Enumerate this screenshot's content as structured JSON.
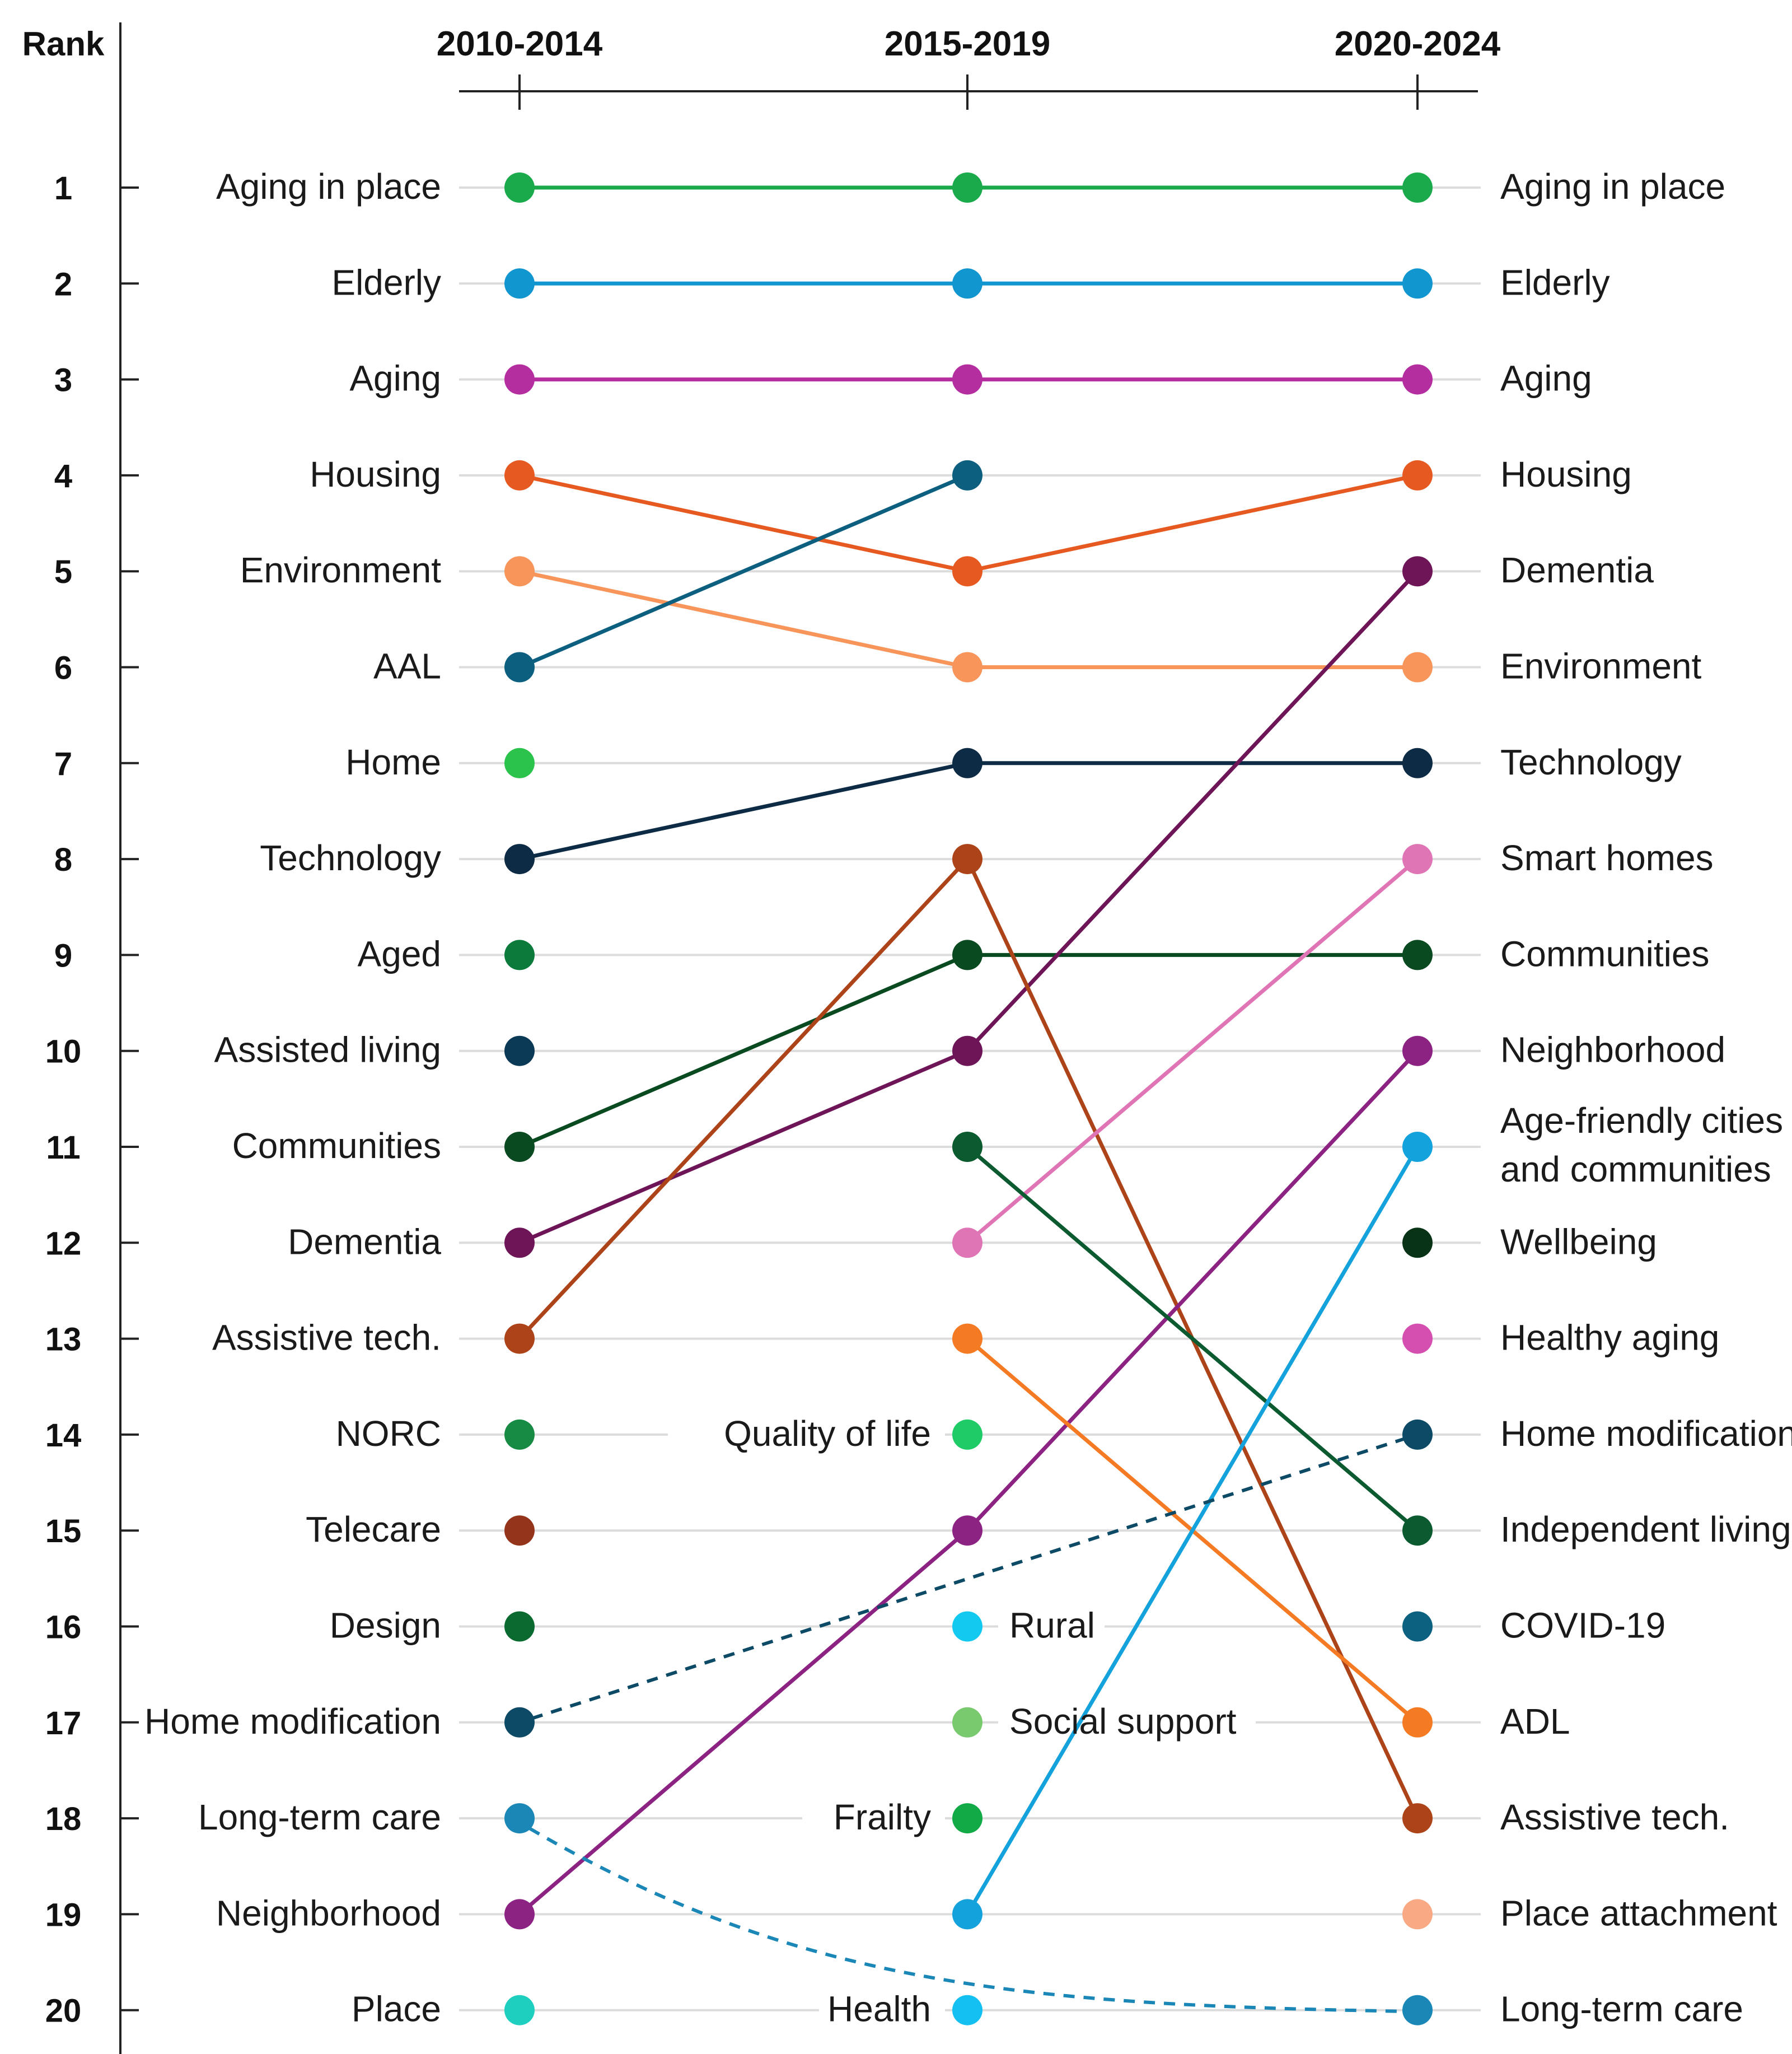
{
  "chart_data": {
    "type": "bump",
    "ylabel": "Rank",
    "periods": [
      "2010-2014",
      "2015-2019",
      "2020-2024"
    ],
    "ranks": [
      1,
      2,
      3,
      4,
      5,
      6,
      7,
      8,
      9,
      10,
      11,
      12,
      13,
      14,
      15,
      16,
      17,
      18,
      19,
      20
    ],
    "grid": true,
    "columns": [
      {
        "period": "2010-2014",
        "labels": [
          "Aging in place",
          "Elderly",
          "Aging",
          "Housing",
          "Environment",
          "AAL",
          "Home",
          "Technology",
          "Aged",
          "Assisted living",
          "Communities",
          "Dementia",
          "Assistive tech.",
          "NORC",
          "Telecare",
          "Design",
          "Home modification",
          "Long-term care",
          "Neighborhood",
          "Place"
        ],
        "colors": [
          "#1aaa4b",
          "#1296cf",
          "#b52ea0",
          "#e65a22",
          "#f7955b",
          "#0c5f7f",
          "#2cc34c",
          "#0d2b45",
          "#0b7a3b",
          "#0b3a57",
          "#0a4a20",
          "#6e1558",
          "#ad4419",
          "#178a43",
          "#93341b",
          "#0b6a30",
          "#0d4a65",
          "#1a87b7",
          "#8c2382",
          "#1ecfbf"
        ]
      },
      {
        "period": "2015-2019",
        "labels": [
          "",
          "",
          "",
          "",
          "",
          "",
          "",
          "",
          "",
          "",
          "",
          "",
          "",
          "Quality of life",
          "",
          "Rural",
          "Social support",
          "Frailty",
          "",
          "Health"
        ],
        "colors": [
          "#1aaa4b",
          "#1296cf",
          "#b52ea0",
          "#0c5f7f",
          "#e65a22",
          "#f7955b",
          "#0d2b45",
          "#ad4419",
          "#0a4a20",
          "#6e1558",
          "#0b5a30",
          "#e075b6",
          "#f57a24",
          "#1ecb66",
          "#8c2382",
          "#14c9f0",
          "#79ca6e",
          "#11aa47",
          "#13a2db",
          "#14c0f2"
        ]
      },
      {
        "period": "2020-2024",
        "labels": [
          "Aging in place",
          "Elderly",
          "Aging",
          "Housing",
          "Dementia",
          "Environment",
          "Technology",
          "Smart homes",
          "Communities",
          "Neighborhood",
          "Age-friendly cities and communities",
          "Wellbeing",
          "Healthy aging",
          "Home modification",
          "Independent living",
          "COVID-19",
          "ADL",
          "Assistive tech.",
          "Place attachment",
          "Long-term care"
        ],
        "colors": [
          "#1aaa4b",
          "#1296cf",
          "#b52ea0",
          "#e65a22",
          "#6e1558",
          "#f7955b",
          "#0d2b45",
          "#e075b6",
          "#0a4a20",
          "#8c2382",
          "#13a2db",
          "#083316",
          "#d44fb0",
          "#0d4a65",
          "#0b5a30",
          "#0c6080",
          "#f57a24",
          "#ad4419",
          "#f9aa84",
          "#1a87b7"
        ]
      }
    ],
    "series": [
      {
        "name": "Aging in place",
        "ranks": [
          1,
          1,
          1
        ],
        "color": "#1aaa4b"
      },
      {
        "name": "Elderly",
        "ranks": [
          2,
          2,
          2
        ],
        "color": "#1296cf"
      },
      {
        "name": "Aging",
        "ranks": [
          3,
          3,
          3
        ],
        "color": "#b52ea0"
      },
      {
        "name": "Housing",
        "ranks": [
          4,
          5,
          4
        ],
        "color": "#e65a22"
      },
      {
        "name": "Environment",
        "ranks": [
          5,
          6,
          6
        ],
        "color": "#f7955b"
      },
      {
        "name": "AAL",
        "ranks": [
          6,
          4,
          null
        ],
        "color": "#0c5f7f"
      },
      {
        "name": "Technology",
        "ranks": [
          8,
          7,
          7
        ],
        "color": "#0d2b45"
      },
      {
        "name": "Communities",
        "ranks": [
          11,
          9,
          9
        ],
        "color": "#0a4a20"
      },
      {
        "name": "Dementia",
        "ranks": [
          12,
          10,
          5
        ],
        "color": "#6e1558"
      },
      {
        "name": "Assistive tech.",
        "ranks": [
          13,
          8,
          18
        ],
        "color": "#ad4419"
      },
      {
        "name": "Neighborhood",
        "ranks": [
          19,
          15,
          10
        ],
        "color": "#8c2382"
      },
      {
        "name": "Smart homes",
        "ranks": [
          null,
          12,
          8
        ],
        "color": "#e075b6"
      },
      {
        "name": "Independent living",
        "ranks": [
          null,
          11,
          15
        ],
        "color": "#0b5a30"
      },
      {
        "name": "ADL",
        "ranks": [
          null,
          13,
          17
        ],
        "color": "#f57a24"
      },
      {
        "name": "Age-friendly cities and communities",
        "ranks": [
          null,
          19,
          11
        ],
        "color": "#13a2db"
      },
      {
        "name": "Home modification",
        "ranks": [
          17,
          null,
          14
        ],
        "color": "#0d4a65",
        "dashed": true
      },
      {
        "name": "Long-term care",
        "ranks": [
          18,
          null,
          20
        ],
        "color": "#1a87b7",
        "dashed": true
      }
    ]
  }
}
